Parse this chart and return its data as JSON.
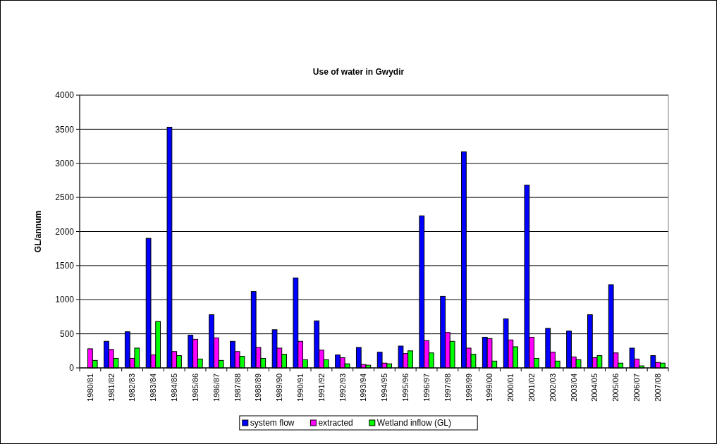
{
  "chart_data": {
    "type": "bar",
    "title": "Use of water in Gwydir",
    "ylabel": "GL/annum",
    "categories": [
      "1980/81",
      "1981/82",
      "1982/83",
      "1983/84",
      "1984/85",
      "1985/86",
      "1986/87",
      "1987/88",
      "1988/89",
      "1989/90",
      "1990/91",
      "1991/92",
      "1992/93",
      "1993/94",
      "1994/95",
      "1995/96",
      "1996/97",
      "1997/98",
      "1998/99",
      "1999/00",
      "2000/01",
      "2001/02",
      "2002/03",
      "2003/04",
      "2004/05",
      "2005/06",
      "2006/07",
      "2007/08"
    ],
    "series": [
      {
        "name": "system flow",
        "color": "#0000ff",
        "values": [
          null,
          390,
          530,
          1900,
          3530,
          480,
          780,
          390,
          1120,
          560,
          1320,
          690,
          190,
          300,
          230,
          320,
          2230,
          1050,
          3170,
          450,
          720,
          2680,
          580,
          540,
          780,
          1220,
          290,
          180
        ]
      },
      {
        "name": "extracted",
        "color": "#ff00ff",
        "values": [
          280,
          270,
          140,
          190,
          240,
          420,
          440,
          240,
          300,
          290,
          390,
          260,
          150,
          50,
          70,
          210,
          400,
          520,
          290,
          430,
          410,
          450,
          230,
          160,
          150,
          220,
          130,
          80
        ]
      },
      {
        "name": "Wetland inflow (GL)",
        "color": "#00ff00",
        "values": [
          110,
          140,
          290,
          680,
          180,
          130,
          110,
          170,
          140,
          200,
          120,
          120,
          60,
          40,
          60,
          250,
          220,
          390,
          200,
          100,
          310,
          140,
          100,
          120,
          180,
          70,
          30,
          70
        ]
      }
    ],
    "ylim": [
      0,
      4000
    ],
    "yticks": [
      0,
      500,
      1000,
      1500,
      2000,
      2500,
      3000,
      3500,
      4000
    ],
    "grid": "y",
    "legend": "bottom"
  }
}
